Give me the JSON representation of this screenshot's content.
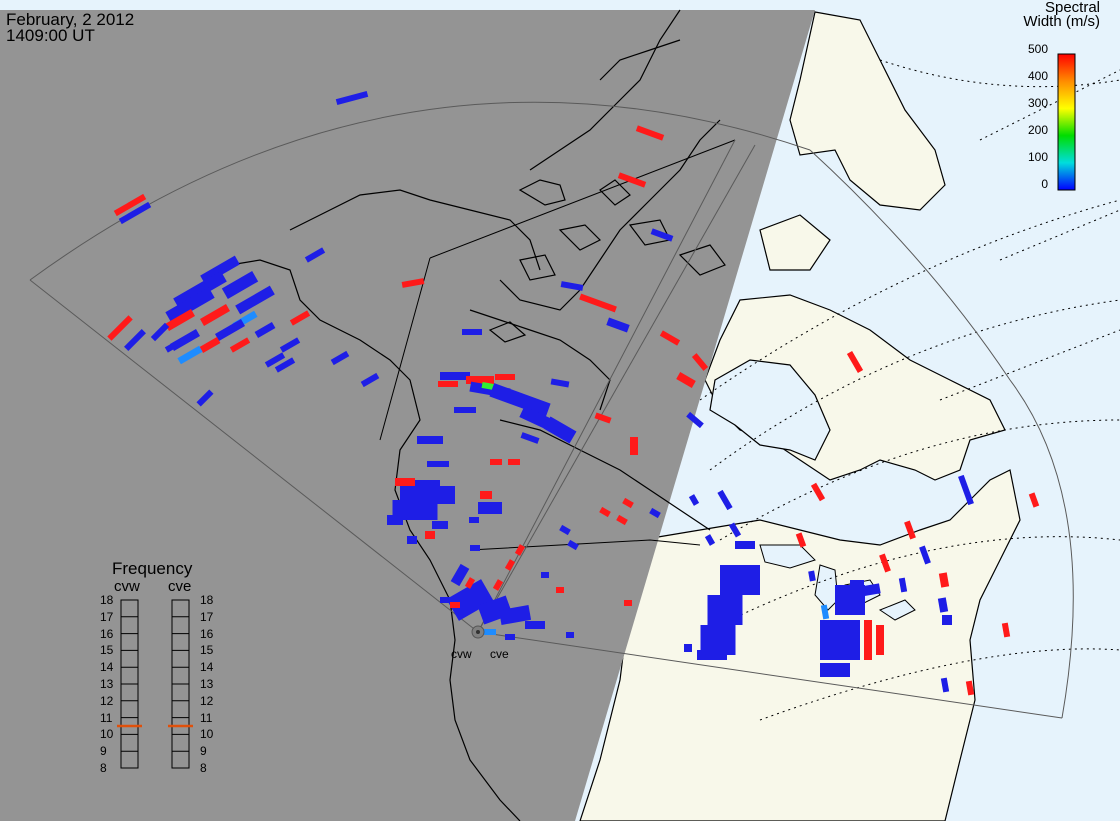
{
  "header": {
    "date": "February, 2 2012",
    "time": "1409:00 UT"
  },
  "colorbar": {
    "title_line1": "Spectral",
    "title_line2": "Width (m/s)",
    "ticks": [
      "500",
      "400",
      "300",
      "200",
      "100",
      "0"
    ],
    "colors": [
      "#ff0000",
      "#ff8c00",
      "#ffff00",
      "#00dd00",
      "#00dddd",
      "#0000ff"
    ]
  },
  "frequency": {
    "title": "Frequency",
    "radar_labels": [
      "cvw",
      "cve"
    ],
    "ticks": [
      "18",
      "17",
      "16",
      "15",
      "14",
      "13",
      "12",
      "11",
      "10",
      "9",
      "8"
    ],
    "cvw_marker": "10.5",
    "cve_marker": "10.5"
  },
  "radars": {
    "west": "cvw",
    "east": "cve"
  },
  "colors": {
    "night": "#949494",
    "land_day": "#f8f8ea",
    "ocean_day": "#e6f3fc",
    "scatter_low": "#1e1ee6",
    "scatter_mid": "#1e8cff",
    "scatter_high": "#ff1a1a"
  }
}
